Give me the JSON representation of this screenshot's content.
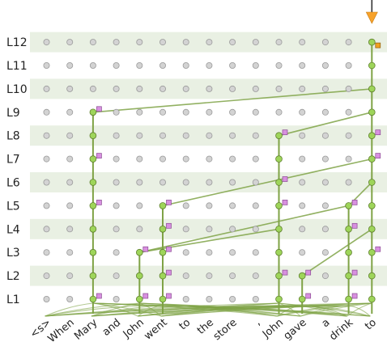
{
  "layers": [
    "L1",
    "L2",
    "L3",
    "L4",
    "L5",
    "L6",
    "L7",
    "L8",
    "L9",
    "L10",
    "L11",
    "L12"
  ],
  "tokens": [
    "<s>",
    "When",
    "Mary",
    "and",
    "John",
    "went",
    "to",
    "the",
    "store",
    ",",
    "John",
    "gave",
    "a",
    "drink",
    "to"
  ],
  "active_columns": [
    {
      "token": 2,
      "from_layer": 1,
      "to_layer": 9
    },
    {
      "token": 4,
      "from_layer": 1,
      "to_layer": 3
    },
    {
      "token": 5,
      "from_layer": 1,
      "to_layer": 5
    },
    {
      "token": 10,
      "from_layer": 1,
      "to_layer": 8
    },
    {
      "token": 11,
      "from_layer": 1,
      "to_layer": 2
    },
    {
      "token": 13,
      "from_layer": 1,
      "to_layer": 5
    },
    {
      "token": 14,
      "from_layer": 1,
      "to_layer": 12
    }
  ],
  "cross_edges": [
    {
      "from": [
        2,
        9
      ],
      "to": [
        14,
        10
      ]
    },
    {
      "from": [
        10,
        8
      ],
      "to": [
        14,
        9
      ]
    },
    {
      "from": [
        5,
        5
      ],
      "to": [
        14,
        7
      ]
    },
    {
      "from": [
        4,
        3
      ],
      "to": [
        13,
        5
      ]
    },
    {
      "from": [
        4,
        3
      ],
      "to": [
        10,
        4
      ]
    },
    {
      "from": [
        11,
        2
      ],
      "to": [
        14,
        4
      ]
    },
    {
      "from": [
        13,
        5
      ],
      "to": [
        14,
        6
      ]
    }
  ],
  "squares": {
    "magenta": [
      [
        2,
        1
      ],
      [
        2,
        5
      ],
      [
        2,
        7
      ],
      [
        2,
        9
      ],
      [
        4,
        1
      ],
      [
        4,
        3
      ],
      [
        5,
        1
      ],
      [
        5,
        2
      ],
      [
        5,
        3
      ],
      [
        5,
        4
      ],
      [
        5,
        5
      ],
      [
        10,
        2
      ],
      [
        10,
        5
      ],
      [
        10,
        6
      ],
      [
        10,
        8
      ],
      [
        11,
        1
      ],
      [
        11,
        2
      ],
      [
        13,
        1
      ],
      [
        13,
        2
      ],
      [
        13,
        4
      ],
      [
        13,
        5
      ],
      [
        14,
        3
      ],
      [
        14,
        7
      ],
      [
        14,
        8
      ]
    ],
    "orange": [
      [
        14,
        12
      ]
    ]
  },
  "colors": {
    "band": "#e9f0e3",
    "inactive_node": "#d3d3d3",
    "active_node": "#9ed55a",
    "edge": "#7fa346",
    "magenta_square": "#d890e0",
    "orange_square": "#f0a020",
    "arrow": "#f7a22b"
  }
}
